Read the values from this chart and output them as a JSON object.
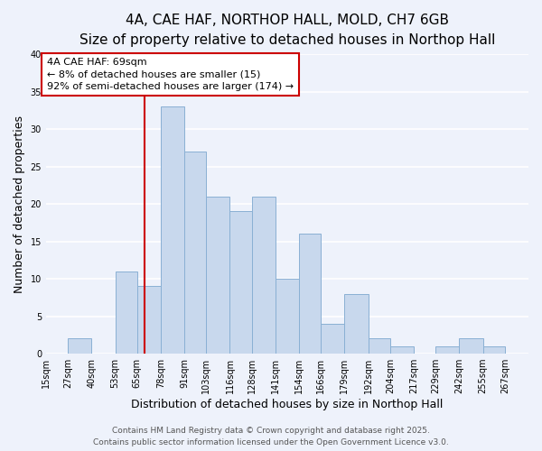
{
  "title": "4A, CAE HAF, NORTHOP HALL, MOLD, CH7 6GB",
  "subtitle": "Size of property relative to detached houses in Northop Hall",
  "xlabel": "Distribution of detached houses by size in Northop Hall",
  "ylabel": "Number of detached properties",
  "background_color": "#eef2fb",
  "bar_color": "#c8d8ed",
  "bar_edge_color": "#8ab0d4",
  "grid_color": "#ffffff",
  "annotation_text": "4A CAE HAF: 69sqm\n← 8% of detached houses are smaller (15)\n92% of semi-detached houses are larger (174) →",
  "vline_x": 69,
  "vline_color": "#cc0000",
  "footer1": "Contains HM Land Registry data © Crown copyright and database right 2025.",
  "footer2": "Contains public sector information licensed under the Open Government Licence v3.0.",
  "bins": [
    15,
    27,
    40,
    53,
    65,
    78,
    91,
    103,
    116,
    128,
    141,
    154,
    166,
    179,
    192,
    204,
    217,
    229,
    242,
    255,
    267,
    280
  ],
  "bin_labels": [
    "15sqm",
    "27sqm",
    "40sqm",
    "53sqm",
    "65sqm",
    "78sqm",
    "91sqm",
    "103sqm",
    "116sqm",
    "128sqm",
    "141sqm",
    "154sqm",
    "166sqm",
    "179sqm",
    "192sqm",
    "204sqm",
    "217sqm",
    "229sqm",
    "242sqm",
    "255sqm",
    "267sqm"
  ],
  "counts": [
    0,
    2,
    0,
    11,
    9,
    33,
    27,
    21,
    19,
    21,
    10,
    16,
    4,
    8,
    2,
    1,
    0,
    1,
    2,
    1,
    0
  ],
  "ylim": [
    0,
    40
  ],
  "yticks": [
    0,
    5,
    10,
    15,
    20,
    25,
    30,
    35,
    40
  ],
  "title_fontsize": 11,
  "subtitle_fontsize": 9.5,
  "label_fontsize": 9,
  "tick_fontsize": 7,
  "annotation_fontsize": 8,
  "footer_fontsize": 6.5
}
